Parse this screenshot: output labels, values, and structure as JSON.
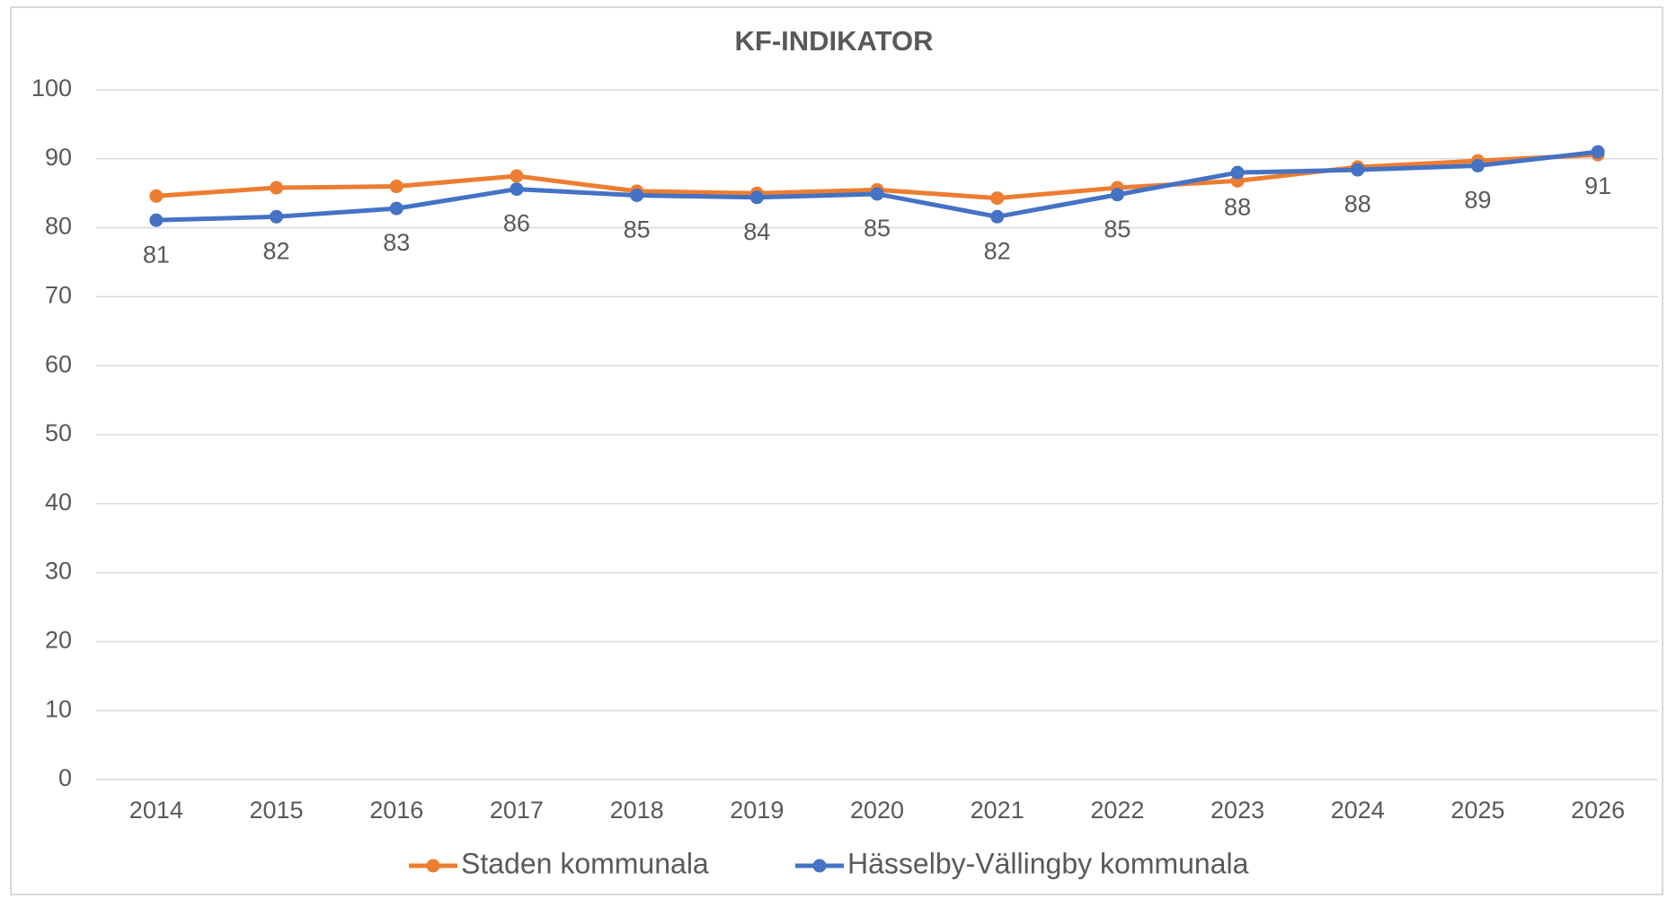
{
  "chart_data": {
    "type": "line",
    "title": "KF-INDIKATOR",
    "categories": [
      "2014",
      "2015",
      "2016",
      "2017",
      "2018",
      "2019",
      "2020",
      "2021",
      "2022",
      "2023",
      "2024",
      "2025",
      "2026"
    ],
    "series": [
      {
        "name": "Staden kommunala",
        "color": "#ed7d31",
        "values": [
          84.6,
          85.8,
          86.0,
          87.5,
          85.3,
          85.0,
          85.5,
          84.3,
          85.8,
          86.8,
          88.8,
          89.7,
          90.6
        ]
      },
      {
        "name": "Hässelby-Vällingby kommunala",
        "color": "#4472c4",
        "values": [
          81.1,
          81.6,
          82.8,
          85.6,
          84.7,
          84.4,
          84.9,
          81.6,
          84.8,
          88.0,
          88.4,
          89.0,
          91.0
        ],
        "value_labels": [
          "81",
          "82",
          "83",
          "86",
          "85",
          "84",
          "85",
          "82",
          "85",
          "88",
          "88",
          "89",
          "91"
        ]
      }
    ],
    "ylim": [
      0,
      100
    ],
    "yticks": [
      0,
      10,
      20,
      30,
      40,
      50,
      60,
      70,
      80,
      90,
      100
    ],
    "grid": true,
    "legend": "bottom"
  }
}
